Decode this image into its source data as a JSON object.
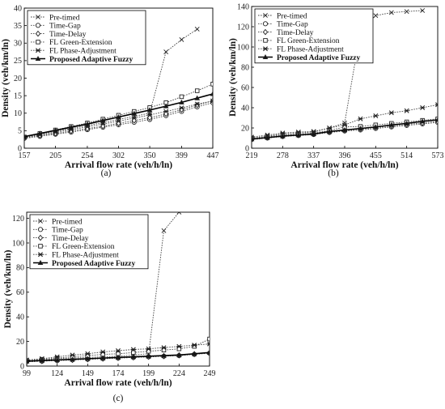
{
  "chart_data": [
    {
      "type": "line",
      "panel_label": "(a)",
      "xlabel": "Arrival flow rate (veh/h/ln)",
      "ylabel": "Density (veh/km/ln)",
      "x_ticks": [
        157,
        205,
        254,
        302,
        350,
        399,
        447
      ],
      "ylim": [
        0,
        40
      ],
      "y_ticks": [
        0,
        5,
        10,
        15,
        20,
        25,
        30,
        35,
        40
      ],
      "legend_position": "top-left",
      "x": [
        157,
        181,
        205,
        229,
        254,
        278,
        302,
        326,
        350,
        375,
        399,
        423,
        447
      ],
      "series": [
        {
          "name": "Pre-timed",
          "marker": "x",
          "style": "dotted",
          "values": [
            3.2,
            4.0,
            4.8,
            5.6,
            6.5,
            7.3,
            8.2,
            9.1,
            10.0,
            27.5,
            31.0,
            34.0,
            null
          ]
        },
        {
          "name": "Time-Gap",
          "marker": "circle",
          "style": "dotted",
          "values": [
            2.8,
            3.4,
            4.0,
            4.6,
            5.3,
            6.0,
            6.7,
            7.4,
            8.2,
            9.3,
            10.5,
            11.8,
            13.0
          ]
        },
        {
          "name": "Time-Delay",
          "marker": "diamond",
          "style": "dotted",
          "values": [
            3.0,
            3.6,
            4.2,
            4.9,
            5.6,
            6.3,
            7.1,
            7.9,
            8.7,
            9.8,
            11.0,
            12.3,
            13.5
          ]
        },
        {
          "name": "FL Green-Extension",
          "marker": "square",
          "style": "dotted",
          "values": [
            3.2,
            4.2,
            5.2,
            6.2,
            7.2,
            8.3,
            9.4,
            10.5,
            11.6,
            13.0,
            14.7,
            16.4,
            18.3
          ]
        },
        {
          "name": "FL Phase-Adjustment",
          "marker": "star",
          "style": "dotted",
          "values": [
            3.1,
            3.8,
            4.5,
            5.3,
            6.1,
            6.9,
            7.7,
            8.6,
            9.5,
            10.5,
            11.5,
            12.6,
            13.5
          ]
        },
        {
          "name": "Proposed Adaptive Fuzzy",
          "marker": "triangle",
          "style": "solid-bold",
          "values": [
            3.3,
            4.2,
            5.1,
            6.0,
            6.9,
            7.9,
            8.9,
            9.9,
            10.9,
            12.0,
            13.1,
            14.3,
            15.5
          ]
        }
      ]
    },
    {
      "type": "line",
      "panel_label": "(b)",
      "xlabel": "Arrival flow rate (veh/h/ln)",
      "ylabel": "Density (veh/km/ln)",
      "x_ticks": [
        219,
        278,
        337,
        396,
        455,
        514,
        573
      ],
      "ylim": [
        0,
        140
      ],
      "y_ticks": [
        0,
        20,
        40,
        60,
        80,
        100,
        120,
        140
      ],
      "legend_position": "top-left",
      "x": [
        219,
        249,
        278,
        308,
        337,
        367,
        396,
        426,
        455,
        485,
        514,
        544,
        573
      ],
      "series": [
        {
          "name": "Pre-timed",
          "marker": "x",
          "style": "dotted",
          "values": [
            10,
            12,
            14,
            15,
            16,
            20,
            25,
            116,
            131,
            134,
            135,
            136,
            null
          ]
        },
        {
          "name": "Time-Gap",
          "marker": "circle",
          "style": "dotted",
          "values": [
            8.5,
            10,
            11.5,
            12.5,
            13.5,
            15.5,
            17,
            18,
            19.5,
            21,
            22.5,
            24,
            25.5
          ]
        },
        {
          "name": "Time-Delay",
          "marker": "diamond",
          "style": "dotted",
          "values": [
            9,
            10.5,
            12,
            13,
            14,
            16,
            17.5,
            19,
            20.5,
            22,
            23.5,
            25,
            26.5
          ]
        },
        {
          "name": "FL Green-Extension",
          "marker": "square",
          "style": "dotted",
          "values": [
            10,
            11.5,
            13,
            14,
            15,
            17.5,
            21,
            21.5,
            23,
            24.5,
            26,
            27.5,
            29
          ]
        },
        {
          "name": "FL Phase-Adjustment",
          "marker": "star",
          "style": "dotted",
          "values": [
            11,
            13,
            15,
            16,
            16.5,
            20,
            23,
            29,
            32,
            35,
            37,
            40,
            43
          ]
        },
        {
          "name": "Proposed Adaptive Fuzzy",
          "marker": "triangle",
          "style": "solid-bold",
          "values": [
            9,
            10.5,
            12,
            13,
            14,
            16.5,
            18,
            19.5,
            21,
            23,
            24.5,
            26.5,
            28
          ]
        }
      ]
    },
    {
      "type": "line",
      "panel_label": "(c)",
      "xlabel": "Arrival flow rate (veh/h/ln)",
      "ylabel": "Density (veh/km/ln)",
      "x_ticks": [
        99,
        124,
        149,
        174,
        199,
        224,
        249
      ],
      "ylim": [
        0,
        125
      ],
      "y_ticks": [
        0,
        20,
        40,
        60,
        80,
        100,
        120
      ],
      "legend_position": "top-left",
      "x": [
        99,
        111.5,
        124,
        136.5,
        149,
        161.5,
        174,
        186.5,
        199,
        211.5,
        224,
        236.5,
        249
      ],
      "series": [
        {
          "name": "Pre-timed",
          "marker": "x",
          "style": "dotted",
          "values": [
            4,
            5,
            6,
            6.5,
            7,
            7.5,
            8,
            9,
            10,
            110,
            125,
            null,
            null
          ]
        },
        {
          "name": "Time-Gap",
          "marker": "circle",
          "style": "dotted",
          "values": [
            3.5,
            4,
            4.5,
            5,
            5.5,
            6,
            6.5,
            7,
            7.5,
            8,
            8.5,
            9.5,
            10.5
          ]
        },
        {
          "name": "Time-Delay",
          "marker": "diamond",
          "style": "dotted",
          "values": [
            3.5,
            4,
            4.5,
            5,
            5.5,
            6,
            6.5,
            7,
            7.5,
            8,
            8.7,
            9.7,
            10.7
          ]
        },
        {
          "name": "FL Green-Extension",
          "marker": "square",
          "style": "dotted",
          "values": [
            4.5,
            5.5,
            6.5,
            7.5,
            8.5,
            9.5,
            10,
            11,
            12,
            13,
            14,
            16,
            22
          ]
        },
        {
          "name": "FL Phase-Adjustment",
          "marker": "star",
          "style": "dotted",
          "values": [
            5,
            6,
            7.5,
            9,
            10,
            11.5,
            12.5,
            13.5,
            14,
            15,
            16,
            17,
            18
          ]
        },
        {
          "name": "Proposed Adaptive Fuzzy",
          "marker": "triangle",
          "style": "solid-bold",
          "values": [
            4,
            4.5,
            5,
            5.5,
            6,
            6.5,
            7,
            7.5,
            8,
            8.5,
            9,
            10,
            11
          ]
        }
      ]
    }
  ]
}
